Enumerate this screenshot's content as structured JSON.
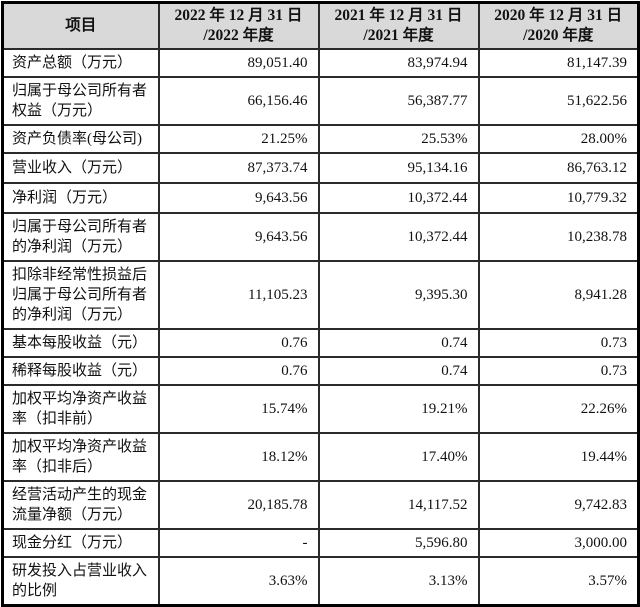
{
  "table": {
    "header": {
      "item_label": "项目",
      "cols": [
        {
          "line1": "2022 年 12 月 31 日",
          "line2": "/2022 年度"
        },
        {
          "line1": "2021 年 12 月 31 日",
          "line2": "/2021 年度"
        },
        {
          "line1": "2020 年 12 月 31 日",
          "line2": "/2020 年度"
        }
      ]
    },
    "rows": [
      {
        "label": "资产总额（万元）",
        "v2022": "89,051.40",
        "v2021": "83,974.94",
        "v2020": "81,147.39"
      },
      {
        "label": "归属于母公司所有者权益（万元）",
        "v2022": "66,156.46",
        "v2021": "56,387.77",
        "v2020": "51,622.56"
      },
      {
        "label": "资产负债率(母公司)",
        "v2022": "21.25%",
        "v2021": "25.53%",
        "v2020": "28.00%"
      },
      {
        "label": "营业收入（万元）",
        "v2022": "87,373.74",
        "v2021": "95,134.16",
        "v2020": "86,763.12"
      },
      {
        "label": "净利润（万元）",
        "v2022": "9,643.56",
        "v2021": "10,372.44",
        "v2020": "10,779.32"
      },
      {
        "label": "归属于母公司所有者的净利润（万元）",
        "v2022": "9,643.56",
        "v2021": "10,372.44",
        "v2020": "10,238.78"
      },
      {
        "label": "扣除非经常性损益后归属于母公司所有者的净利润（万元）",
        "v2022": "11,105.23",
        "v2021": "9,395.30",
        "v2020": "8,941.28"
      },
      {
        "label": "基本每股收益（元）",
        "v2022": "0.76",
        "v2021": "0.74",
        "v2020": "0.73"
      },
      {
        "label": "稀释每股收益（元）",
        "v2022": "0.76",
        "v2021": "0.74",
        "v2020": "0.73"
      },
      {
        "label": "加权平均净资产收益率（扣非前）",
        "v2022": "15.74%",
        "v2021": "19.21%",
        "v2020": "22.26%"
      },
      {
        "label": "加权平均净资产收益率（扣非后）",
        "v2022": "18.12%",
        "v2021": "17.40%",
        "v2020": "19.44%"
      },
      {
        "label": "经营活动产生的现金流量净额（万元）",
        "v2022": "20,185.78",
        "v2021": "14,117.52",
        "v2020": "9,742.83"
      },
      {
        "label": "现金分红（万元）",
        "v2022": "-",
        "v2021": "5,596.80",
        "v2020": "3,000.00"
      },
      {
        "label": "研发投入占营业收入的比例",
        "v2022": "3.63%",
        "v2021": "3.13%",
        "v2020": "3.57%"
      }
    ],
    "colors": {
      "header_bg": "#d9d9d9",
      "outer_border": "#000000",
      "inner_border": "#2b2b2b",
      "text": "#111111"
    }
  }
}
